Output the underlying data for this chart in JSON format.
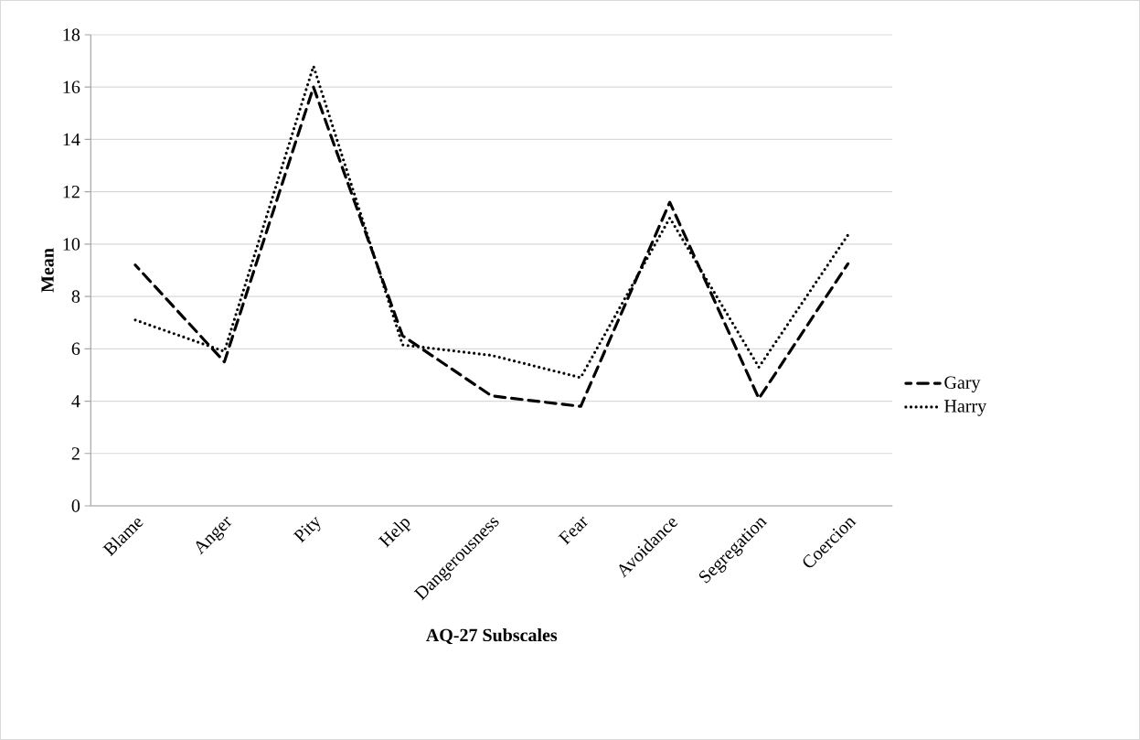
{
  "chart_data": {
    "type": "line",
    "xlabel": "AQ-27 Subscales",
    "ylabel": "Mean",
    "categories": [
      "Blame",
      "Anger",
      "Pity",
      "Help",
      "Dangerousness",
      "Fear",
      "Avoidance",
      "Segregation",
      "Coercion"
    ],
    "series": [
      {
        "name": "Gary",
        "color": "#000000",
        "line_style": "dashed",
        "values": [
          9.2,
          5.5,
          16.0,
          6.5,
          4.2,
          3.8,
          11.6,
          4.1,
          9.25
        ]
      },
      {
        "name": "Harry",
        "color": "#000000",
        "line_style": "dotted",
        "values": [
          7.1,
          5.9,
          16.8,
          6.15,
          5.75,
          4.9,
          11.0,
          5.3,
          10.35
        ]
      }
    ],
    "ylim": [
      0,
      18
    ],
    "yticks": [
      0,
      2,
      4,
      6,
      8,
      10,
      12,
      14,
      16,
      18
    ],
    "grid": "y",
    "legend": "right",
    "marker": "none"
  }
}
